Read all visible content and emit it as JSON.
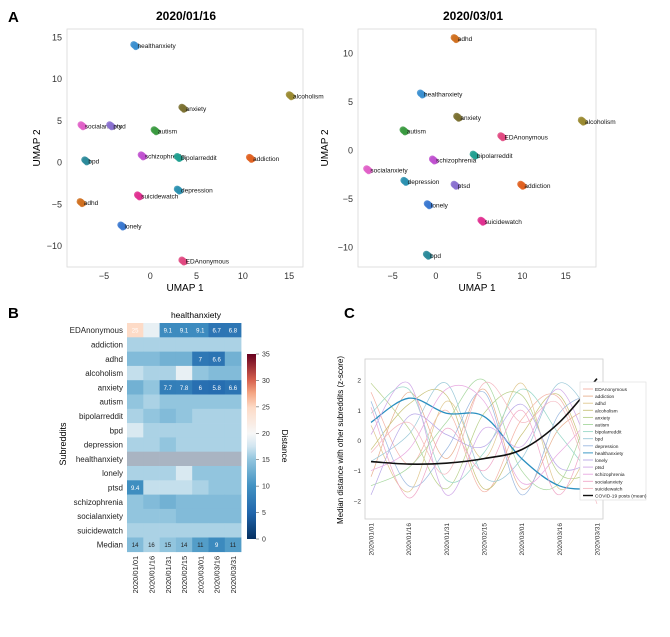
{
  "panels": {
    "a": "A",
    "b": "B",
    "c": "C"
  },
  "chart_data": [
    {
      "type": "scatter",
      "title": "2020/01/16",
      "xlabel": "UMAP 1",
      "ylabel": "UMAP 2",
      "xlim": [
        -9,
        16.5
      ],
      "ylim": [
        -12.5,
        16
      ],
      "xticks": [
        -5,
        0,
        5,
        10,
        15
      ],
      "yticks": [
        -10,
        -5,
        0,
        5,
        10,
        15
      ],
      "xtick_labels": [
        "−5",
        "0",
        "5",
        "10",
        "15"
      ],
      "ytick_labels": [
        "−10",
        "−5",
        "0",
        "5",
        "10",
        "15"
      ],
      "points": [
        {
          "label": "healthanxiety",
          "x": -1.6,
          "y": 14.0,
          "color": "#3b8fd0"
        },
        {
          "label": "alcoholism",
          "x": 15.2,
          "y": 8.0,
          "color": "#9a8a30"
        },
        {
          "label": "anxiety",
          "x": 3.6,
          "y": 6.5,
          "color": "#7a7030"
        },
        {
          "label": "socialanxiety",
          "x": -7.3,
          "y": 4.4,
          "color": "#e060c8"
        },
        {
          "label": "ptsd",
          "x": -4.2,
          "y": 4.4,
          "color": "#8a70d0"
        },
        {
          "label": "autism",
          "x": 0.6,
          "y": 3.8,
          "color": "#3a9a40"
        },
        {
          "label": "schizophrenia",
          "x": -0.8,
          "y": 0.8,
          "color": "#c050d0"
        },
        {
          "label": "bipolarreddit",
          "x": 3.1,
          "y": 0.6,
          "color": "#20a090"
        },
        {
          "label": "addiction",
          "x": 10.9,
          "y": 0.5,
          "color": "#e06020"
        },
        {
          "label": "bpd",
          "x": -6.9,
          "y": 0.2,
          "color": "#2a8a9a"
        },
        {
          "label": "depression",
          "x": 3.1,
          "y": -3.3,
          "color": "#2a90b0"
        },
        {
          "label": "suicidewatch",
          "x": -1.2,
          "y": -4.0,
          "color": "#e03090"
        },
        {
          "label": "adhd",
          "x": -7.4,
          "y": -4.8,
          "color": "#d07020"
        },
        {
          "label": "lonely",
          "x": -3.0,
          "y": -7.6,
          "color": "#3a78d0"
        },
        {
          "label": "EDAnonymous",
          "x": 3.6,
          "y": -11.8,
          "color": "#e04880"
        }
      ]
    },
    {
      "type": "scatter",
      "title": "2020/03/01",
      "xlabel": "UMAP 1",
      "ylabel": "UMAP 2",
      "xlim": [
        -9,
        18.5
      ],
      "ylim": [
        -12,
        12.5
      ],
      "xticks": [
        -5,
        0,
        5,
        10,
        15
      ],
      "yticks": [
        -10,
        -5,
        0,
        5,
        10
      ],
      "xtick_labels": [
        "−5",
        "0",
        "5",
        "10",
        "15"
      ],
      "ytick_labels": [
        "−10",
        "−5",
        "0",
        "5",
        "10"
      ],
      "points": [
        {
          "label": "adhd",
          "x": 2.3,
          "y": 11.5,
          "color": "#d07020"
        },
        {
          "label": "healthanxiety",
          "x": -1.6,
          "y": 5.8,
          "color": "#3b8fd0"
        },
        {
          "label": "anxiety",
          "x": 2.6,
          "y": 3.4,
          "color": "#7a7030"
        },
        {
          "label": "alcoholism",
          "x": 17.0,
          "y": 3.0,
          "color": "#9a8a30"
        },
        {
          "label": "autism",
          "x": -3.6,
          "y": 2.0,
          "color": "#3a9a40"
        },
        {
          "label": "EDAnonymous",
          "x": 7.7,
          "y": 1.4,
          "color": "#e04880"
        },
        {
          "label": "bipolarreddit",
          "x": 4.5,
          "y": -0.5,
          "color": "#20a090"
        },
        {
          "label": "schizophrenia",
          "x": -0.2,
          "y": -1.0,
          "color": "#c050d0"
        },
        {
          "label": "socialanxiety",
          "x": -7.8,
          "y": -2.0,
          "color": "#e060c8"
        },
        {
          "label": "depression",
          "x": -3.5,
          "y": -3.2,
          "color": "#2a90b0"
        },
        {
          "label": "ptsd",
          "x": 2.3,
          "y": -3.6,
          "color": "#8a70d0"
        },
        {
          "label": "addiction",
          "x": 10.0,
          "y": -3.6,
          "color": "#e06020"
        },
        {
          "label": "lonely",
          "x": -0.8,
          "y": -5.6,
          "color": "#3a78d0"
        },
        {
          "label": "suicidewatch",
          "x": 5.4,
          "y": -7.3,
          "color": "#e03090"
        },
        {
          "label": "bpd",
          "x": -0.9,
          "y": -10.8,
          "color": "#2a8a9a"
        }
      ]
    },
    {
      "type": "heatmap",
      "title": "healthanxiety",
      "ylabel": "Subreddits",
      "colorbar_label": "Distance",
      "vmin": 0,
      "vmax": 35,
      "colorbar_ticks": [
        0,
        5,
        10,
        15,
        20,
        25,
        30,
        35
      ],
      "columns": [
        "2020/01/01",
        "2020/01/16",
        "2020/01/31",
        "2020/02/15",
        "2020/03/01",
        "2020/03/16",
        "2020/03/31"
      ],
      "rows": [
        "EDAnonymous",
        "addiction",
        "adhd",
        "alcoholism",
        "anxiety",
        "autism",
        "bipolarreddit",
        "bpd",
        "depression",
        "healthanxiety",
        "lonely",
        "ptsd",
        "schizophrenia",
        "socialanxiety",
        "suicidewatch",
        "Median"
      ],
      "values": [
        [
          25,
          19,
          9.1,
          9.1,
          9.1,
          6.7,
          6.8
        ],
        [
          16,
          16,
          16,
          16,
          16,
          16,
          16
        ],
        [
          14,
          14,
          13,
          13,
          7,
          6.6,
          13
        ],
        [
          17,
          16,
          16,
          19,
          15,
          14,
          14
        ],
        [
          13,
          15,
          7.7,
          7.8,
          6,
          5.8,
          6.6
        ],
        [
          15,
          16,
          15,
          15,
          15,
          15,
          15
        ],
        [
          16,
          15,
          14,
          15,
          16,
          16,
          16
        ],
        [
          18,
          16,
          16,
          16,
          16,
          16,
          16
        ],
        [
          16,
          16,
          15,
          16,
          16,
          16,
          16
        ],
        [
          null,
          null,
          null,
          null,
          null,
          null,
          null
        ],
        [
          16,
          16,
          16,
          18,
          15,
          15,
          15
        ],
        [
          9.4,
          17,
          17,
          17,
          16,
          15,
          15
        ],
        [
          15,
          14,
          13,
          14,
          14,
          14,
          14
        ],
        [
          15,
          15,
          15,
          14,
          14,
          14,
          14
        ],
        [
          16,
          16,
          16,
          16,
          16,
          16,
          16
        ],
        [
          14,
          16,
          15,
          14,
          11,
          9,
          11
        ]
      ],
      "annotations": [
        [
          0,
          0,
          "25"
        ],
        [
          0,
          2,
          "9.1"
        ],
        [
          0,
          3,
          "9.1"
        ],
        [
          0,
          4,
          "9.1"
        ],
        [
          0,
          5,
          "6.7"
        ],
        [
          0,
          6,
          "6.8"
        ],
        [
          2,
          4,
          "7"
        ],
        [
          2,
          5,
          "6.6"
        ],
        [
          4,
          2,
          "7.7"
        ],
        [
          4,
          3,
          "7.8"
        ],
        [
          4,
          4,
          "6"
        ],
        [
          4,
          5,
          "5.8"
        ],
        [
          4,
          6,
          "6.6"
        ],
        [
          11,
          0,
          "9.4"
        ],
        [
          15,
          0,
          "14"
        ],
        [
          15,
          1,
          "16"
        ],
        [
          15,
          2,
          "15"
        ],
        [
          15,
          3,
          "14"
        ],
        [
          15,
          4,
          "11"
        ],
        [
          15,
          5,
          "9"
        ],
        [
          15,
          6,
          "11"
        ]
      ]
    },
    {
      "type": "line",
      "ylabel": "Median distance with other subreddits (z-score)",
      "x": [
        "2020/01/01",
        "2020/01/16",
        "2020/01/31",
        "2020/02/15",
        "2020/03/01",
        "2020/03/16",
        "2020/03/31"
      ],
      "ylim": [
        -2.6,
        2.7
      ],
      "yticks": [
        -2,
        -1,
        0,
        1,
        2
      ],
      "ytick_labels": [
        "−2",
        "−1",
        "0",
        "1",
        "2"
      ],
      "legend_position": "right",
      "series": [
        {
          "name": "EDAnonymous",
          "color": "#f4b3a6",
          "values": [
            1.6,
            -0.8,
            1.0,
            -1.7,
            0.7,
            1.4,
            -1.9
          ]
        },
        {
          "name": "addiction",
          "color": "#e8b090",
          "values": [
            -1.2,
            1.6,
            -0.6,
            1.7,
            -1.6,
            0.4,
            1.2
          ]
        },
        {
          "name": "adhd",
          "color": "#e0c890",
          "values": [
            0.5,
            -1.7,
            1.3,
            -0.6,
            1.9,
            -1.6,
            0.3
          ]
        },
        {
          "name": "alcoholism",
          "color": "#c9c27a",
          "values": [
            -0.3,
            1.2,
            1.5,
            -1.6,
            0.2,
            1.5,
            -1.7
          ]
        },
        {
          "name": "anxiety",
          "color": "#b8d08a",
          "values": [
            1.9,
            0.4,
            -1.6,
            0.9,
            1.5,
            -1.1,
            -1.0
          ]
        },
        {
          "name": "autism",
          "color": "#a8d8a0",
          "values": [
            -1.5,
            -0.9,
            0.6,
            2.0,
            -1.0,
            -1.4,
            1.8
          ]
        },
        {
          "name": "bipolarreddit",
          "color": "#9ad8c8",
          "values": [
            0.9,
            1.7,
            -1.3,
            -0.4,
            1.7,
            0.2,
            -1.4
          ]
        },
        {
          "name": "bpd",
          "color": "#9ac8d8",
          "values": [
            -0.7,
            0.2,
            1.9,
            -1.2,
            -0.6,
            1.9,
            0.5
          ]
        },
        {
          "name": "depression",
          "color": "#9ab8e0",
          "values": [
            1.3,
            -1.5,
            -0.3,
            1.6,
            -1.8,
            0.9,
            1.6
          ]
        },
        {
          "name": "healthanxiety",
          "color": "#2a8fc0",
          "values": [
            0.6,
            1.4,
            0.9,
            0.8,
            -0.6,
            -1.5,
            -1.6
          ]
        },
        {
          "name": "lonely",
          "color": "#b8a8e8",
          "values": [
            -1.8,
            0.8,
            0.2,
            -0.2,
            1.2,
            -0.9,
            -0.6
          ]
        },
        {
          "name": "ptsd",
          "color": "#d0a8e8",
          "values": [
            0.2,
            1.9,
            -1.8,
            0.4,
            -0.2,
            1.7,
            -1.0
          ]
        },
        {
          "name": "schizophrenia",
          "color": "#e8a8e0",
          "values": [
            -1.0,
            -0.3,
            1.7,
            1.3,
            -1.4,
            -0.4,
            1.0
          ]
        },
        {
          "name": "socialanxiety",
          "color": "#f0a8c8",
          "values": [
            1.1,
            -1.9,
            0.4,
            -1.0,
            1.0,
            -1.8,
            1.4
          ]
        },
        {
          "name": "suicidewatch",
          "color": "#f4b8c0",
          "values": [
            -0.4,
            0.6,
            -1.1,
            1.9,
            0.6,
            1.2,
            -2.1
          ]
        },
        {
          "name": "COVID-19 posts (mean)",
          "color": "#111111",
          "values": [
            -0.7,
            -0.78,
            -0.75,
            -0.6,
            -0.3,
            0.6,
            2.05
          ]
        }
      ]
    }
  ]
}
